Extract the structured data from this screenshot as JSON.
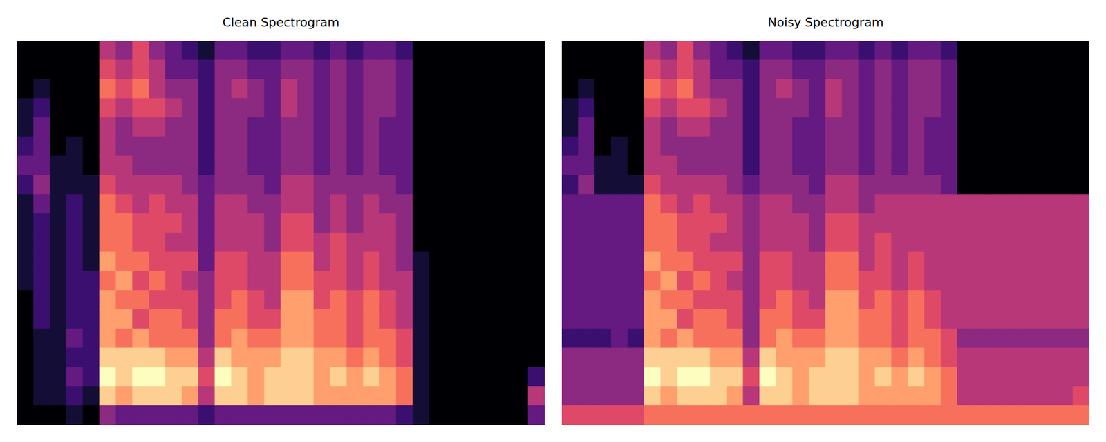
{
  "chart_data": [
    {
      "type": "heatmap",
      "title": "Clean Spectrogram",
      "tick_labels": false,
      "xlim": [
        0,
        32
      ],
      "ylim": [
        0,
        20
      ],
      "color_range": [
        0,
        10
      ],
      "columns": [
        [
          0,
          0,
          0,
          1,
          1,
          2,
          3,
          2,
          1,
          1,
          1,
          1,
          1,
          0,
          0,
          0,
          0,
          0,
          0,
          0
        ],
        [
          0,
          0,
          1,
          2,
          3,
          3,
          3,
          4,
          3,
          2,
          2,
          2,
          2,
          2,
          2,
          1,
          1,
          1,
          1,
          0
        ],
        [
          0,
          0,
          0,
          0,
          0,
          0,
          1,
          1,
          1,
          1,
          1,
          1,
          1,
          1,
          1,
          1,
          1,
          1,
          1,
          0
        ],
        [
          0,
          0,
          0,
          0,
          0,
          1,
          1,
          1,
          2,
          2,
          2,
          2,
          2,
          2,
          2,
          3,
          2,
          3,
          2,
          1
        ],
        [
          0,
          0,
          0,
          0,
          0,
          0,
          0,
          1,
          1,
          1,
          1,
          1,
          2,
          2,
          2,
          2,
          2,
          2,
          1,
          0
        ],
        [
          5,
          6,
          7,
          6,
          5,
          5,
          5,
          6,
          7,
          7,
          7,
          8,
          7,
          8,
          8,
          8,
          9,
          10,
          9,
          4
        ],
        [
          4,
          5,
          6,
          5,
          4,
          4,
          5,
          5,
          6,
          7,
          7,
          7,
          8,
          7,
          8,
          7,
          9,
          9,
          8,
          3
        ],
        [
          6,
          6,
          7,
          6,
          5,
          4,
          4,
          5,
          5,
          6,
          6,
          7,
          6,
          7,
          6,
          8,
          9,
          10,
          9,
          3
        ],
        [
          4,
          5,
          5,
          6,
          5,
          4,
          4,
          5,
          6,
          6,
          6,
          6,
          7,
          6,
          7,
          7,
          9,
          10,
          9,
          3
        ],
        [
          3,
          3,
          4,
          5,
          4,
          4,
          4,
          5,
          5,
          6,
          5,
          6,
          6,
          6,
          7,
          7,
          8,
          9,
          9,
          3
        ],
        [
          2,
          3,
          4,
          4,
          4,
          4,
          4,
          4,
          5,
          5,
          5,
          6,
          5,
          6,
          6,
          7,
          8,
          9,
          8,
          3
        ],
        [
          1,
          2,
          2,
          2,
          2,
          2,
          2,
          3,
          3,
          3,
          3,
          3,
          4,
          4,
          4,
          4,
          5,
          6,
          5,
          2
        ],
        [
          3,
          4,
          4,
          4,
          4,
          4,
          4,
          4,
          5,
          5,
          5,
          6,
          6,
          6,
          7,
          7,
          9,
          10,
          9,
          3
        ],
        [
          3,
          4,
          5,
          4,
          4,
          4,
          4,
          4,
          5,
          5,
          5,
          6,
          6,
          7,
          7,
          8,
          8,
          9,
          9,
          3
        ],
        [
          2,
          3,
          4,
          4,
          3,
          3,
          3,
          4,
          4,
          5,
          5,
          5,
          5,
          6,
          6,
          7,
          8,
          8,
          8,
          3
        ],
        [
          2,
          3,
          3,
          3,
          3,
          3,
          3,
          3,
          4,
          4,
          4,
          5,
          5,
          5,
          6,
          7,
          8,
          9,
          9,
          3
        ],
        [
          3,
          4,
          5,
          5,
          4,
          4,
          4,
          5,
          5,
          6,
          6,
          7,
          7,
          8,
          8,
          8,
          9,
          9,
          9,
          3
        ],
        [
          3,
          4,
          4,
          4,
          4,
          4,
          4,
          5,
          5,
          6,
          6,
          7,
          7,
          8,
          8,
          8,
          9,
          9,
          9,
          3
        ],
        [
          2,
          3,
          3,
          3,
          3,
          3,
          3,
          4,
          4,
          4,
          5,
          5,
          6,
          6,
          7,
          7,
          8,
          8,
          8,
          3
        ],
        [
          3,
          4,
          4,
          4,
          4,
          4,
          4,
          4,
          5,
          5,
          6,
          6,
          6,
          7,
          7,
          7,
          8,
          9,
          8,
          3
        ],
        [
          2,
          3,
          3,
          3,
          3,
          3,
          3,
          4,
          4,
          4,
          5,
          5,
          5,
          6,
          6,
          6,
          7,
          8,
          8,
          3
        ],
        [
          3,
          4,
          4,
          4,
          4,
          4,
          4,
          4,
          5,
          5,
          5,
          6,
          6,
          7,
          7,
          7,
          8,
          9,
          8,
          3
        ],
        [
          3,
          4,
          4,
          4,
          3,
          3,
          3,
          4,
          4,
          5,
          5,
          5,
          5,
          6,
          6,
          7,
          7,
          8,
          8,
          3
        ],
        [
          2,
          3,
          3,
          3,
          3,
          3,
          3,
          3,
          4,
          4,
          4,
          4,
          5,
          5,
          5,
          6,
          6,
          7,
          7,
          2
        ],
        [
          0,
          0,
          0,
          0,
          0,
          0,
          0,
          0,
          0,
          0,
          0,
          1,
          1,
          1,
          1,
          1,
          1,
          1,
          1,
          1
        ],
        [
          0,
          0,
          0,
          0,
          0,
          0,
          0,
          0,
          0,
          0,
          0,
          0,
          0,
          0,
          0,
          0,
          0,
          0,
          0,
          0
        ],
        [
          0,
          0,
          0,
          0,
          0,
          0,
          0,
          0,
          0,
          0,
          0,
          0,
          0,
          0,
          0,
          0,
          0,
          0,
          0,
          0
        ],
        [
          0,
          0,
          0,
          0,
          0,
          0,
          0,
          0,
          0,
          0,
          0,
          0,
          0,
          0,
          0,
          0,
          0,
          0,
          0,
          0
        ],
        [
          0,
          0,
          0,
          0,
          0,
          0,
          0,
          0,
          0,
          0,
          0,
          0,
          0,
          0,
          0,
          0,
          0,
          0,
          0,
          0
        ],
        [
          0,
          0,
          0,
          0,
          0,
          0,
          0,
          0,
          0,
          0,
          0,
          0,
          0,
          0,
          0,
          0,
          0,
          0,
          0,
          0
        ],
        [
          0,
          0,
          0,
          0,
          0,
          0,
          0,
          0,
          0,
          0,
          0,
          0,
          0,
          0,
          0,
          0,
          0,
          0,
          0,
          0
        ],
        [
          0,
          0,
          0,
          0,
          0,
          0,
          0,
          0,
          0,
          0,
          0,
          0,
          0,
          0,
          0,
          0,
          0,
          2,
          5,
          3
        ]
      ]
    },
    {
      "type": "heatmap",
      "title": "Noisy Spectrogram",
      "tick_labels": false,
      "xlim": [
        0,
        32
      ],
      "ylim": [
        0,
        20
      ],
      "color_range": [
        0,
        10
      ],
      "columns": [
        [
          0,
          0,
          0,
          1,
          1,
          2,
          3,
          2,
          3,
          3,
          3,
          3,
          3,
          3,
          3,
          2,
          4,
          4,
          4,
          6
        ],
        [
          0,
          0,
          1,
          2,
          3,
          3,
          3,
          4,
          3,
          3,
          3,
          3,
          3,
          3,
          3,
          2,
          4,
          4,
          4,
          6
        ],
        [
          0,
          0,
          0,
          0,
          0,
          0,
          1,
          1,
          3,
          3,
          3,
          3,
          3,
          3,
          3,
          2,
          4,
          4,
          4,
          6
        ],
        [
          0,
          0,
          0,
          0,
          0,
          1,
          1,
          1,
          3,
          3,
          3,
          3,
          3,
          3,
          3,
          3,
          4,
          4,
          4,
          6
        ],
        [
          0,
          0,
          0,
          0,
          0,
          0,
          0,
          1,
          3,
          3,
          3,
          3,
          3,
          3,
          3,
          2,
          4,
          4,
          4,
          6
        ],
        [
          5,
          6,
          7,
          6,
          5,
          5,
          5,
          6,
          7,
          7,
          7,
          8,
          7,
          8,
          8,
          8,
          9,
          10,
          9,
          7
        ],
        [
          4,
          5,
          6,
          5,
          4,
          4,
          5,
          5,
          6,
          7,
          7,
          7,
          8,
          7,
          8,
          7,
          9,
          9,
          8,
          7
        ],
        [
          6,
          6,
          7,
          6,
          5,
          4,
          4,
          5,
          5,
          6,
          6,
          7,
          6,
          7,
          6,
          8,
          9,
          10,
          9,
          7
        ],
        [
          4,
          5,
          5,
          6,
          5,
          4,
          4,
          5,
          6,
          6,
          6,
          6,
          7,
          6,
          7,
          7,
          9,
          10,
          9,
          7
        ],
        [
          3,
          3,
          4,
          5,
          4,
          4,
          4,
          5,
          5,
          6,
          5,
          6,
          6,
          6,
          7,
          7,
          8,
          9,
          9,
          7
        ],
        [
          2,
          3,
          4,
          4,
          4,
          4,
          4,
          4,
          5,
          5,
          5,
          6,
          5,
          6,
          6,
          7,
          8,
          9,
          8,
          7
        ],
        [
          1,
          2,
          2,
          2,
          2,
          2,
          2,
          3,
          4,
          4,
          4,
          4,
          4,
          4,
          4,
          4,
          5,
          6,
          5,
          7
        ],
        [
          3,
          4,
          4,
          4,
          4,
          4,
          4,
          4,
          5,
          5,
          5,
          6,
          6,
          6,
          7,
          7,
          9,
          10,
          9,
          7
        ],
        [
          3,
          4,
          5,
          4,
          4,
          4,
          4,
          4,
          5,
          5,
          5,
          6,
          6,
          7,
          7,
          8,
          8,
          9,
          9,
          7
        ],
        [
          2,
          3,
          4,
          4,
          3,
          3,
          3,
          4,
          4,
          5,
          5,
          5,
          5,
          6,
          6,
          7,
          8,
          8,
          8,
          7
        ],
        [
          2,
          3,
          3,
          3,
          3,
          3,
          3,
          3,
          4,
          4,
          4,
          5,
          5,
          5,
          6,
          7,
          8,
          9,
          9,
          7
        ],
        [
          3,
          4,
          5,
          5,
          4,
          4,
          4,
          5,
          5,
          6,
          6,
          7,
          7,
          8,
          8,
          8,
          9,
          9,
          9,
          7
        ],
        [
          3,
          4,
          4,
          4,
          4,
          4,
          4,
          5,
          5,
          6,
          6,
          7,
          7,
          8,
          8,
          8,
          9,
          9,
          9,
          7
        ],
        [
          2,
          3,
          3,
          3,
          3,
          3,
          3,
          4,
          4,
          5,
          5,
          5,
          6,
          6,
          7,
          7,
          8,
          8,
          8,
          7
        ],
        [
          3,
          4,
          4,
          4,
          4,
          4,
          4,
          4,
          5,
          5,
          6,
          6,
          6,
          7,
          7,
          7,
          8,
          9,
          8,
          7
        ],
        [
          2,
          3,
          3,
          3,
          3,
          3,
          3,
          4,
          5,
          5,
          5,
          5,
          5,
          6,
          6,
          6,
          7,
          8,
          8,
          7
        ],
        [
          3,
          4,
          4,
          4,
          4,
          4,
          4,
          4,
          5,
          5,
          5,
          6,
          6,
          7,
          7,
          7,
          8,
          9,
          8,
          7
        ],
        [
          3,
          4,
          4,
          4,
          3,
          3,
          3,
          4,
          5,
          5,
          5,
          5,
          5,
          6,
          6,
          7,
          7,
          8,
          8,
          7
        ],
        [
          2,
          3,
          3,
          3,
          3,
          3,
          3,
          3,
          5,
          5,
          5,
          5,
          5,
          5,
          5,
          6,
          6,
          7,
          7,
          7
        ],
        [
          0,
          0,
          0,
          0,
          0,
          0,
          0,
          0,
          5,
          5,
          5,
          5,
          5,
          5,
          5,
          4,
          5,
          5,
          5,
          7
        ],
        [
          0,
          0,
          0,
          0,
          0,
          0,
          0,
          0,
          5,
          5,
          5,
          5,
          5,
          5,
          5,
          4,
          5,
          5,
          5,
          7
        ],
        [
          0,
          0,
          0,
          0,
          0,
          0,
          0,
          0,
          5,
          5,
          5,
          5,
          5,
          5,
          5,
          4,
          5,
          5,
          5,
          7
        ],
        [
          0,
          0,
          0,
          0,
          0,
          0,
          0,
          0,
          5,
          5,
          5,
          5,
          5,
          5,
          5,
          4,
          5,
          5,
          5,
          7
        ],
        [
          0,
          0,
          0,
          0,
          0,
          0,
          0,
          0,
          5,
          5,
          5,
          5,
          5,
          5,
          5,
          4,
          5,
          5,
          5,
          7
        ],
        [
          0,
          0,
          0,
          0,
          0,
          0,
          0,
          0,
          5,
          5,
          5,
          5,
          5,
          5,
          5,
          4,
          5,
          5,
          5,
          7
        ],
        [
          0,
          0,
          0,
          0,
          0,
          0,
          0,
          0,
          5,
          5,
          5,
          5,
          5,
          5,
          5,
          4,
          5,
          5,
          5,
          7
        ],
        [
          0,
          0,
          0,
          0,
          0,
          0,
          0,
          0,
          5,
          5,
          5,
          5,
          5,
          5,
          5,
          4,
          5,
          5,
          6,
          7
        ]
      ]
    }
  ]
}
